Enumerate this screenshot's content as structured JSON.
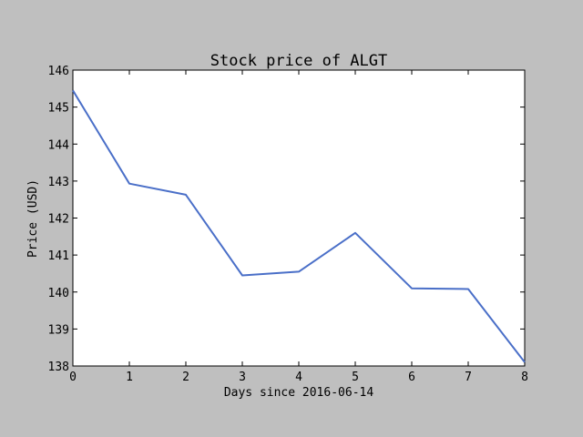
{
  "chart_data": {
    "type": "line",
    "title": "Stock price of ALGT",
    "xlabel": "Days since 2016-06-14",
    "ylabel": "Price (USD)",
    "xlim": [
      0,
      8
    ],
    "ylim": [
      138,
      146
    ],
    "xticks": [
      "0",
      "1",
      "2",
      "3",
      "4",
      "5",
      "6",
      "7",
      "8"
    ],
    "yticks": [
      "138",
      "139",
      "140",
      "141",
      "142",
      "143",
      "144",
      "145",
      "146"
    ],
    "grid": false,
    "series": [
      {
        "color": "#4a6fc8",
        "x": [
          0,
          1,
          2,
          3,
          4,
          5,
          6,
          7,
          8
        ],
        "y": [
          145.45,
          142.93,
          142.63,
          140.45,
          140.55,
          141.6,
          140.1,
          140.08,
          138.1
        ]
      }
    ]
  }
}
